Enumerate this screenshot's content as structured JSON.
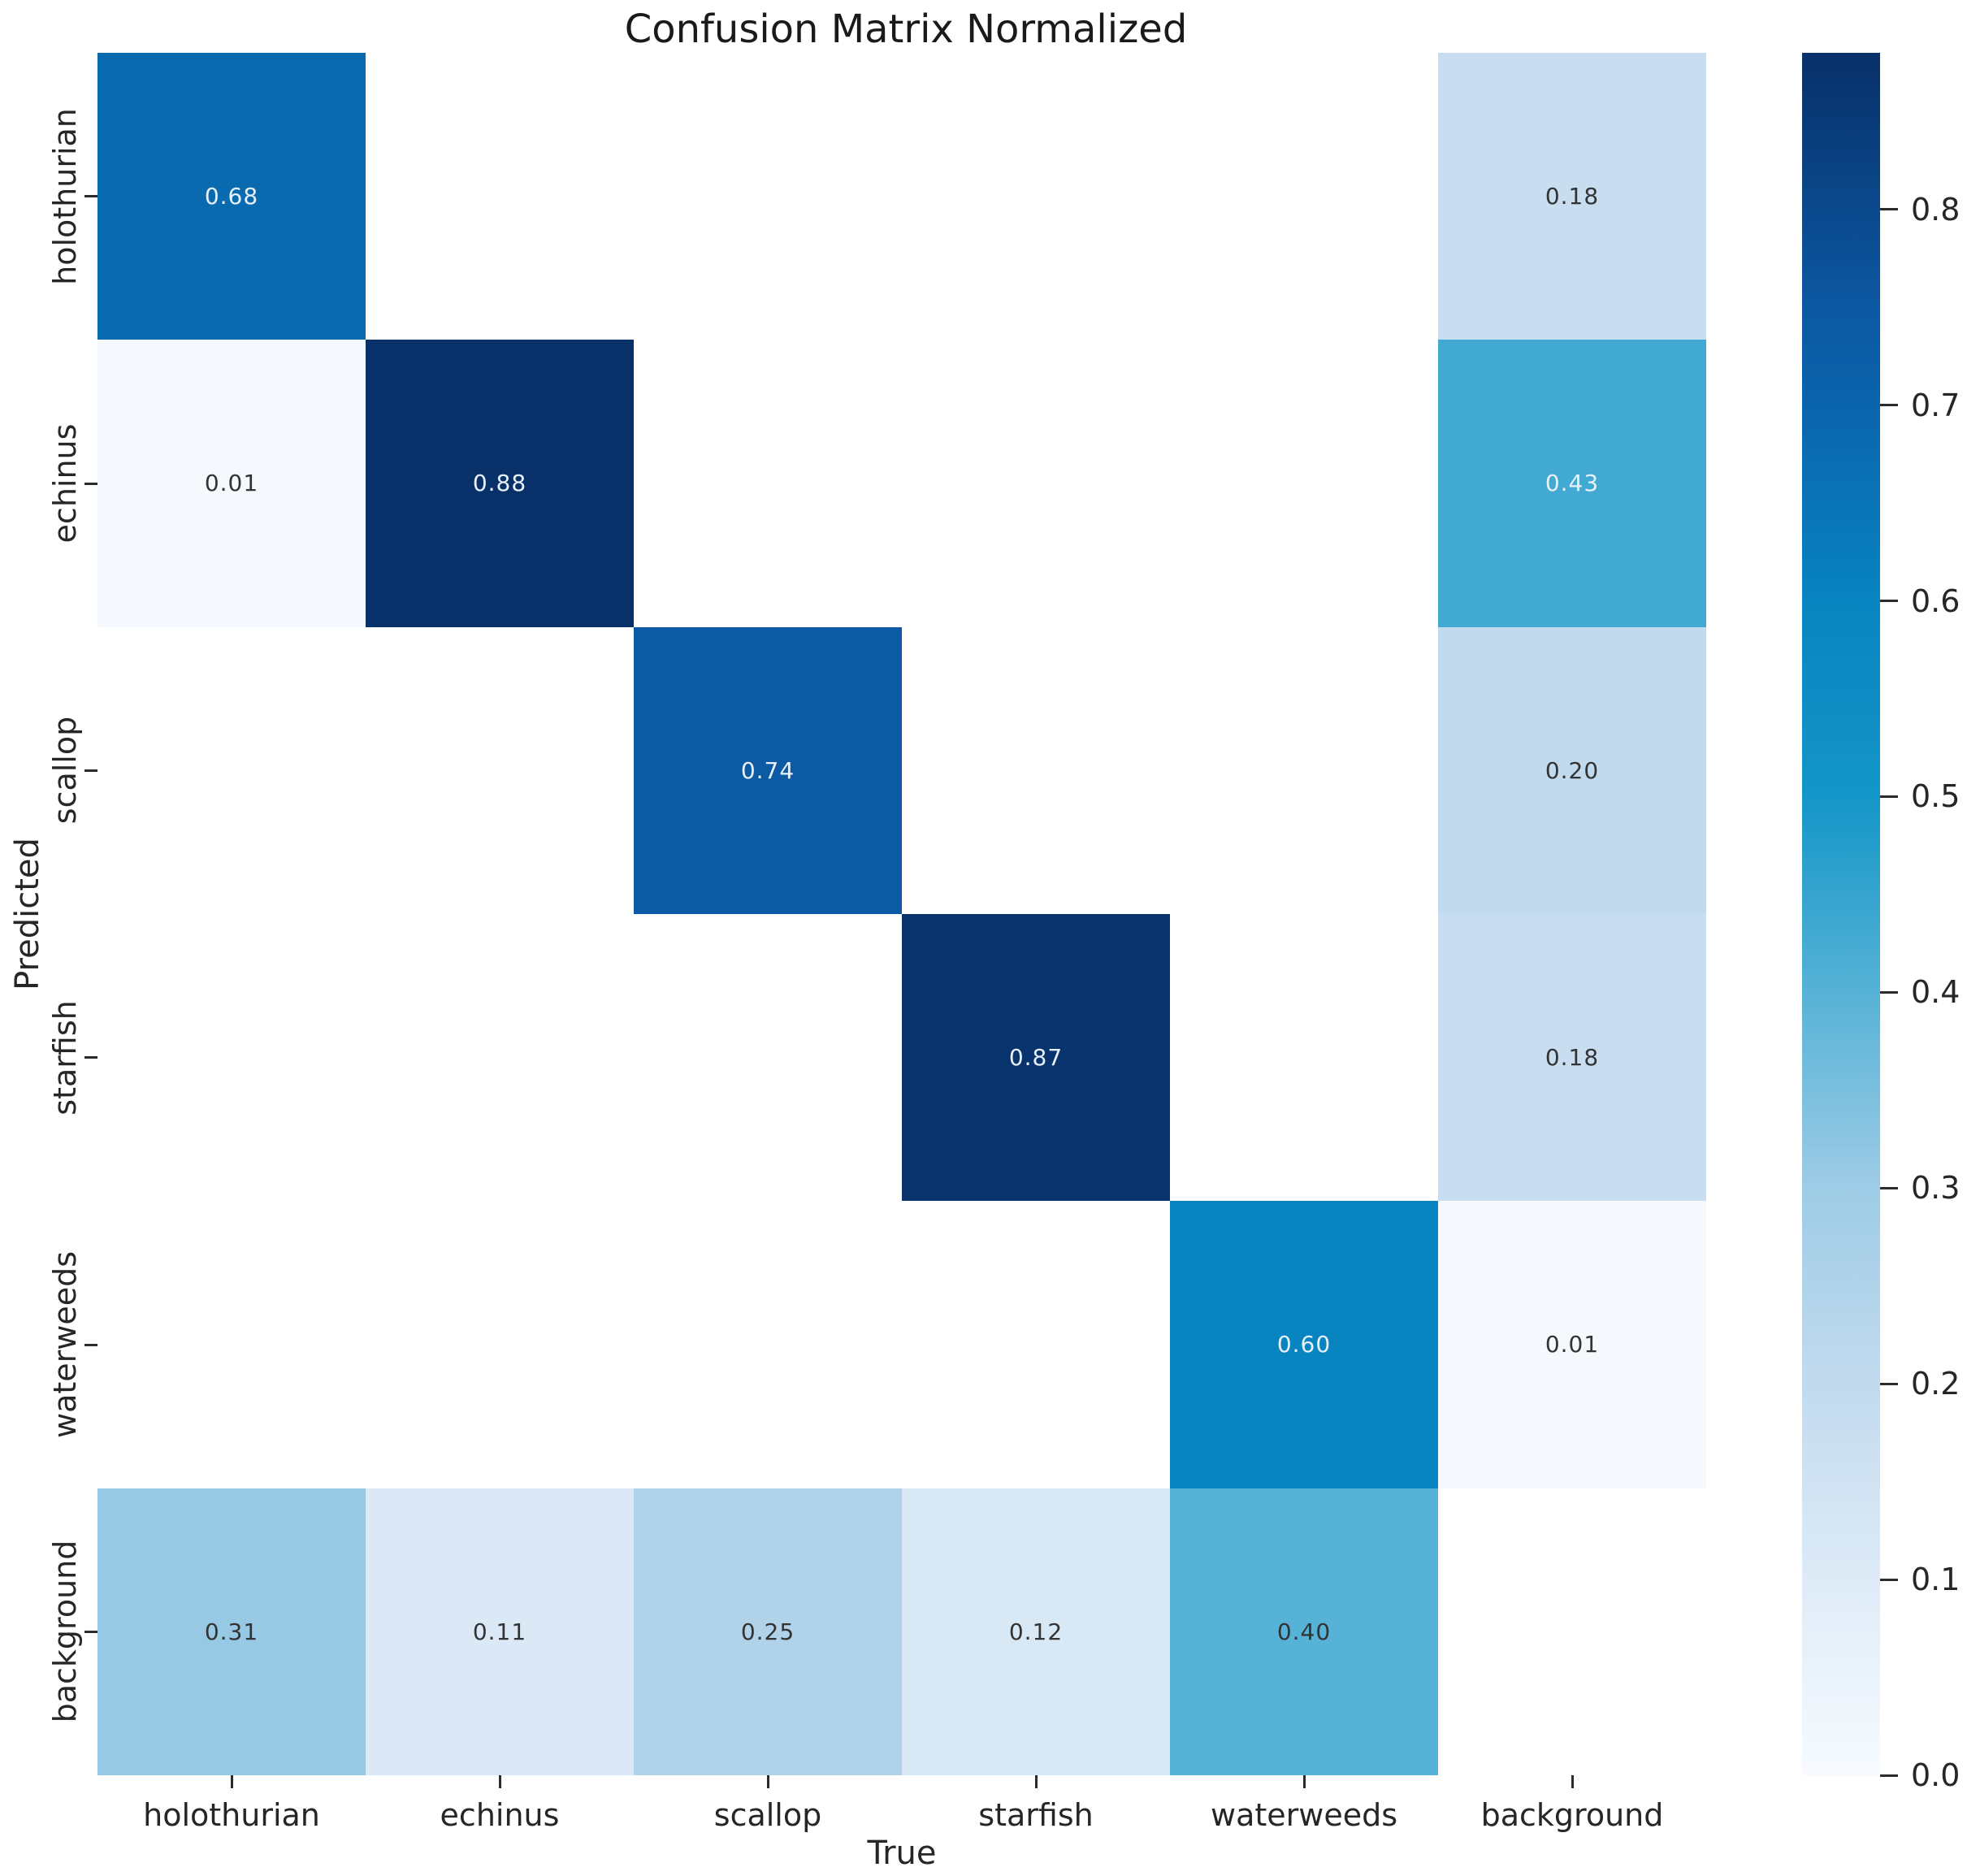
{
  "title": "Confusion Matrix Normalized",
  "chart_data": {
    "type": "heatmap",
    "title": "Confusion Matrix Normalized",
    "xlabel": "True",
    "ylabel": "Predicted",
    "x_categories": [
      "holothurian",
      "echinus",
      "scallop",
      "starfish",
      "waterweeds",
      "background"
    ],
    "y_categories": [
      "holothurian",
      "echinus",
      "scallop",
      "starfish",
      "waterweeds",
      "background"
    ],
    "matrix": [
      [
        0.68,
        null,
        null,
        null,
        null,
        0.18
      ],
      [
        0.01,
        0.88,
        null,
        null,
        null,
        0.43
      ],
      [
        null,
        null,
        0.74,
        null,
        null,
        0.2
      ],
      [
        null,
        null,
        null,
        0.87,
        null,
        0.18
      ],
      [
        null,
        null,
        null,
        null,
        0.6,
        0.01
      ],
      [
        0.31,
        0.11,
        0.25,
        0.12,
        0.4,
        null
      ]
    ],
    "value_decimals": 2,
    "vmin": 0.0,
    "vmax": 0.88,
    "colorbar_ticks": [
      "0.8",
      "0.7",
      "0.6",
      "0.5",
      "0.4",
      "0.3",
      "0.2",
      "0.1",
      "0.0"
    ],
    "colorbar_tick_values": [
      0.8,
      0.7,
      0.6,
      0.5,
      0.4,
      0.3,
      0.2,
      0.1,
      0.0
    ],
    "colormap_name": "Blues",
    "colormap_stops": [
      {
        "v": 0.0,
        "c": "#f7fbff"
      },
      {
        "v": 0.1,
        "c": "#deebf7"
      },
      {
        "v": 0.2,
        "c": "#c2daee"
      },
      {
        "v": 0.3,
        "c": "#9ecce6"
      },
      {
        "v": 0.4,
        "c": "#56b2d6"
      },
      {
        "v": 0.5,
        "c": "#1496c8"
      },
      {
        "v": 0.6,
        "c": "#0884c0"
      },
      {
        "v": 0.7,
        "c": "#0a64ac"
      },
      {
        "v": 0.75,
        "c": "#0c58a2"
      },
      {
        "v": 0.88,
        "c": "#083069"
      }
    ],
    "empty_cell_color": "#ffffff",
    "annotation_color_light": "#e8f0f9",
    "annotation_color_dark": "#333333",
    "grid": false,
    "legend_position": "right-colorbar"
  }
}
